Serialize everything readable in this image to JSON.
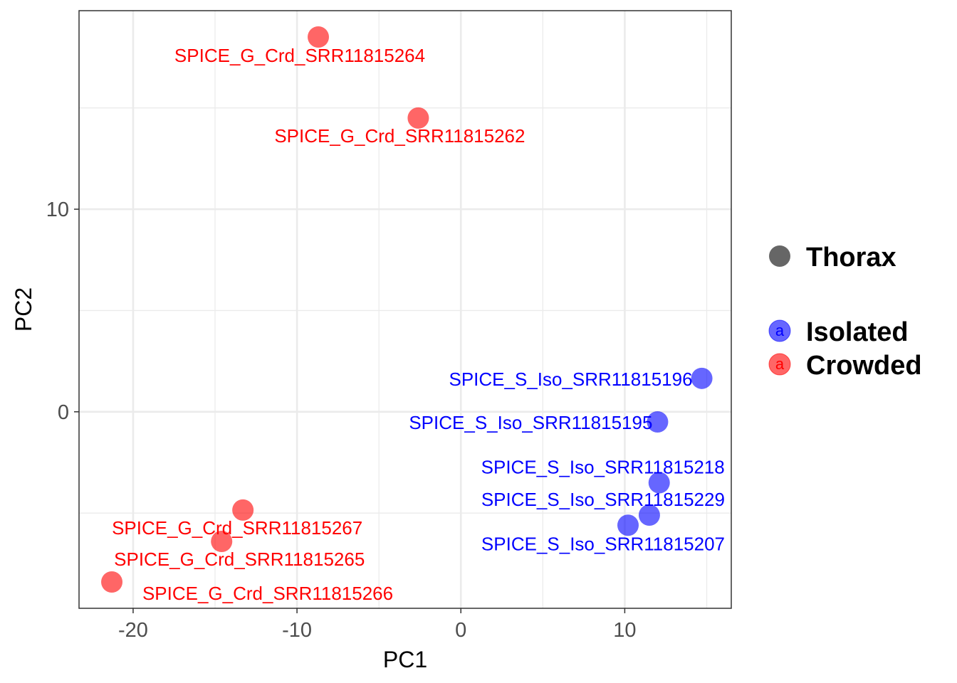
{
  "chart_data": {
    "type": "scatter",
    "title": "",
    "xlabel": "PC1",
    "ylabel": "PC2",
    "xlim": [
      -23.3,
      16.5
    ],
    "ylim": [
      -9.7,
      19.8
    ],
    "xticks": [
      -20,
      -10,
      0,
      10
    ],
    "xtick_labels": [
      "-20",
      "-10",
      "0",
      "10"
    ],
    "yticks": [
      0,
      10
    ],
    "ytick_labels": [
      "0",
      "10"
    ],
    "grid": true,
    "legend_position": "right",
    "shape_legend": {
      "label": "Thorax",
      "color": "#666666"
    },
    "series": [
      {
        "name": "Isolated",
        "color": "#0000ff",
        "points": [
          {
            "label": "SPICE_S_Iso_SRR11815196",
            "x": 14.7,
            "y": 1.65
          },
          {
            "label": "SPICE_S_Iso_SRR11815195",
            "x": 12.0,
            "y": -0.5
          },
          {
            "label": "SPICE_S_Iso_SRR11815218",
            "x": 12.1,
            "y": -3.5
          },
          {
            "label": "SPICE_S_Iso_SRR11815229",
            "x": 11.5,
            "y": -5.1
          },
          {
            "label": "SPICE_S_Iso_SRR11815207",
            "x": 10.2,
            "y": -5.6
          }
        ]
      },
      {
        "name": "Crowded",
        "color": "#ff0000",
        "points": [
          {
            "label": "SPICE_G_Crd_SRR11815264",
            "x": -8.7,
            "y": 18.5
          },
          {
            "label": "SPICE_G_Crd_SRR11815262",
            "x": -2.6,
            "y": 14.5
          },
          {
            "label": "SPICE_G_Crd_SRR11815267",
            "x": -13.3,
            "y": -4.85
          },
          {
            "label": "SPICE_G_Crd_SRR11815265",
            "x": -14.6,
            "y": -6.4
          },
          {
            "label": "SPICE_G_Crd_SRR11815266",
            "x": -21.3,
            "y": -8.4
          }
        ]
      }
    ],
    "legend": {
      "key_glyph": "a",
      "entries": [
        {
          "label": "Isolated",
          "color": "#0000ff"
        },
        {
          "label": "Crowded",
          "color": "#ff0000"
        }
      ]
    }
  }
}
